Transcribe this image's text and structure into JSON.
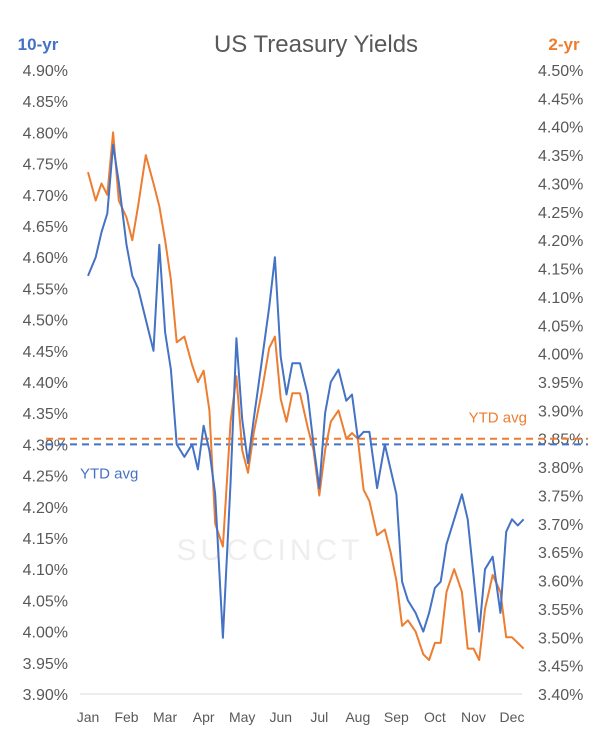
{
  "chart_data": {
    "type": "line",
    "title": "US Treasury Yields",
    "x_categories": [
      "Jan",
      "Feb",
      "Mar",
      "Apr",
      "May",
      "Jun",
      "Jul",
      "Aug",
      "Sep",
      "Oct",
      "Nov",
      "Dec"
    ],
    "left_axis": {
      "title": "10-yr",
      "ylim": [
        3.9,
        4.9
      ],
      "ticks": [
        "4.90%",
        "4.85%",
        "4.80%",
        "4.75%",
        "4.70%",
        "4.65%",
        "4.60%",
        "4.55%",
        "4.50%",
        "4.45%",
        "4.40%",
        "4.35%",
        "4.30%",
        "4.25%",
        "4.20%",
        "4.15%",
        "4.10%",
        "4.05%",
        "4.00%",
        "3.95%",
        "3.90%"
      ]
    },
    "right_axis": {
      "title": "2-yr",
      "ylim": [
        3.4,
        4.5
      ],
      "ticks": [
        "4.50%",
        "4.45%",
        "4.40%",
        "4.35%",
        "4.30%",
        "4.25%",
        "4.20%",
        "4.15%",
        "4.10%",
        "4.05%",
        "4.00%",
        "3.95%",
        "3.90%",
        "3.85%",
        "3.80%",
        "3.75%",
        "3.70%",
        "3.65%",
        "3.60%",
        "3.55%",
        "3.50%",
        "3.45%",
        "3.40%"
      ]
    },
    "series": [
      {
        "name": "10-yr",
        "axis": "left",
        "color": "#4472c4",
        "x": [
          0.0,
          0.2,
          0.35,
          0.5,
          0.65,
          0.8,
          1.0,
          1.15,
          1.3,
          1.5,
          1.7,
          1.85,
          2.0,
          2.15,
          2.3,
          2.5,
          2.7,
          2.85,
          3.0,
          3.15,
          3.3,
          3.5,
          3.7,
          3.85,
          4.0,
          4.15,
          4.3,
          4.5,
          4.7,
          4.85,
          5.0,
          5.15,
          5.3,
          5.5,
          5.7,
          5.85,
          6.0,
          6.15,
          6.3,
          6.5,
          6.7,
          6.85,
          7.0,
          7.15,
          7.3,
          7.5,
          7.7,
          7.85,
          8.0,
          8.15,
          8.3,
          8.5,
          8.7,
          8.85,
          9.0,
          9.15,
          9.3,
          9.5,
          9.7,
          9.85,
          10.0,
          10.15,
          10.3,
          10.5,
          10.7,
          10.85,
          11.0,
          11.15,
          11.3
        ],
        "values": [
          4.57,
          4.6,
          4.64,
          4.67,
          4.78,
          4.72,
          4.62,
          4.57,
          4.55,
          4.5,
          4.45,
          4.62,
          4.48,
          4.42,
          4.3,
          4.28,
          4.3,
          4.26,
          4.33,
          4.29,
          4.22,
          3.99,
          4.24,
          4.47,
          4.34,
          4.27,
          4.34,
          4.43,
          4.52,
          4.6,
          4.44,
          4.38,
          4.43,
          4.43,
          4.38,
          4.3,
          4.23,
          4.35,
          4.4,
          4.42,
          4.37,
          4.38,
          4.31,
          4.32,
          4.32,
          4.23,
          4.3,
          4.26,
          4.22,
          4.08,
          4.05,
          4.03,
          4.0,
          4.03,
          4.07,
          4.08,
          4.14,
          4.18,
          4.22,
          4.18,
          4.09,
          4.0,
          4.1,
          4.12,
          4.03,
          4.16,
          4.18,
          4.17,
          4.18
        ]
      },
      {
        "name": "2-yr",
        "axis": "right",
        "color": "#ed7d31",
        "x": [
          0.0,
          0.2,
          0.35,
          0.5,
          0.65,
          0.8,
          1.0,
          1.15,
          1.3,
          1.5,
          1.7,
          1.85,
          2.0,
          2.15,
          2.3,
          2.5,
          2.7,
          2.85,
          3.0,
          3.15,
          3.3,
          3.5,
          3.7,
          3.85,
          4.0,
          4.15,
          4.3,
          4.5,
          4.7,
          4.85,
          5.0,
          5.15,
          5.3,
          5.5,
          5.7,
          5.85,
          6.0,
          6.15,
          6.3,
          6.5,
          6.7,
          6.85,
          7.0,
          7.15,
          7.3,
          7.5,
          7.7,
          7.85,
          8.0,
          8.15,
          8.3,
          8.5,
          8.7,
          8.85,
          9.0,
          9.15,
          9.3,
          9.5,
          9.7,
          9.85,
          10.0,
          10.15,
          10.3,
          10.5,
          10.7,
          10.85,
          11.0,
          11.15,
          11.3
        ],
        "values": [
          4.32,
          4.27,
          4.3,
          4.28,
          4.39,
          4.27,
          4.24,
          4.2,
          4.26,
          4.35,
          4.3,
          4.26,
          4.2,
          4.13,
          4.02,
          4.03,
          3.98,
          3.95,
          3.97,
          3.9,
          3.7,
          3.66,
          3.88,
          3.96,
          3.83,
          3.79,
          3.86,
          3.93,
          4.01,
          4.03,
          3.92,
          3.88,
          3.93,
          3.93,
          3.87,
          3.83,
          3.75,
          3.83,
          3.88,
          3.9,
          3.85,
          3.86,
          3.85,
          3.76,
          3.74,
          3.68,
          3.69,
          3.65,
          3.6,
          3.52,
          3.53,
          3.51,
          3.47,
          3.46,
          3.49,
          3.49,
          3.58,
          3.62,
          3.58,
          3.48,
          3.48,
          3.46,
          3.55,
          3.61,
          3.58,
          3.5,
          3.5,
          3.49,
          3.48
        ]
      }
    ],
    "reference_lines": [
      {
        "label": "YTD avg",
        "axis": "left",
        "value": 4.3,
        "color": "#4472c4",
        "style": "dashed"
      },
      {
        "label": "YTD avg",
        "axis": "right",
        "value": 3.85,
        "color": "#ed7d31",
        "style": "dashed"
      }
    ],
    "watermark": "SUCCINCT"
  }
}
